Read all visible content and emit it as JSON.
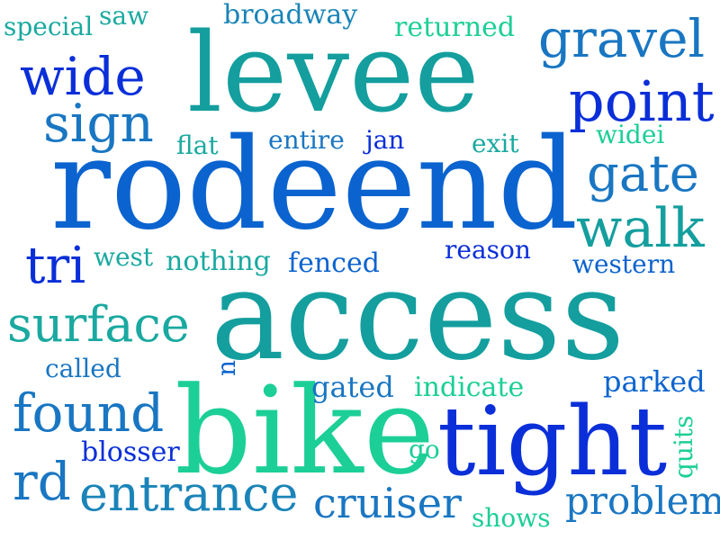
{
  "palette": {
    "teal": "#149e9e",
    "blue": "#0b63cf",
    "royal": "#0a2fd9",
    "green": "#1ccf96",
    "mid": "#1976c2"
  },
  "words": [
    {
      "text": "levee",
      "color": "#149e9e"
    },
    {
      "text": "rodeend",
      "color": "#0b63cf"
    },
    {
      "text": "access",
      "color": "#149e9e"
    },
    {
      "text": "bike",
      "color": "#1ccf96"
    },
    {
      "text": "tight",
      "color": "#0a2fd9"
    },
    {
      "text": "gravel",
      "color": "#1976c2"
    },
    {
      "text": "point",
      "color": "#0a2fd9"
    },
    {
      "text": "wide",
      "color": "#0a2fd9"
    },
    {
      "text": "sign",
      "color": "#1976c2"
    },
    {
      "text": "gate",
      "color": "#1976c2"
    },
    {
      "text": "walk",
      "color": "#149e9e"
    },
    {
      "text": "surface",
      "color": "#1aa9a0"
    },
    {
      "text": "found",
      "color": "#1976c2"
    },
    {
      "text": "entrance",
      "color": "#1a84b8"
    },
    {
      "text": "cruiser",
      "color": "#1976c2"
    },
    {
      "text": "problem",
      "color": "#1976c2"
    },
    {
      "text": "rd",
      "color": "#1976c2"
    },
    {
      "text": "tri",
      "color": "#0a2fd9"
    },
    {
      "text": "special",
      "color": "#1aa9a0"
    },
    {
      "text": "saw",
      "color": "#1aa9a0"
    },
    {
      "text": "broadway",
      "color": "#1a84b8"
    },
    {
      "text": "returned",
      "color": "#1ccf96"
    },
    {
      "text": "flat",
      "color": "#1aa9a0"
    },
    {
      "text": "entire",
      "color": "#1976c2"
    },
    {
      "text": "jan",
      "color": "#0a2fd9"
    },
    {
      "text": "exit",
      "color": "#1aa9a0"
    },
    {
      "text": "widei",
      "color": "#1ccf96"
    },
    {
      "text": "west",
      "color": "#1aa9a0"
    },
    {
      "text": "nothing",
      "color": "#1aa9a0"
    },
    {
      "text": "fenced",
      "color": "#0b63cf"
    },
    {
      "text": "reason",
      "color": "#0a2fd9"
    },
    {
      "text": "western",
      "color": "#0b63cf"
    },
    {
      "text": "called",
      "color": "#1976c2"
    },
    {
      "text": "n",
      "color": "#0b63cf"
    },
    {
      "text": "gated",
      "color": "#1976c2"
    },
    {
      "text": "indicate",
      "color": "#1ccf96"
    },
    {
      "text": "parked",
      "color": "#0b63cf"
    },
    {
      "text": "blosser",
      "color": "#0a2fd9"
    },
    {
      "text": "go",
      "color": "#1ccf96"
    },
    {
      "text": "quits",
      "color": "#1ccf96"
    },
    {
      "text": "shows",
      "color": "#1ccf96"
    }
  ]
}
